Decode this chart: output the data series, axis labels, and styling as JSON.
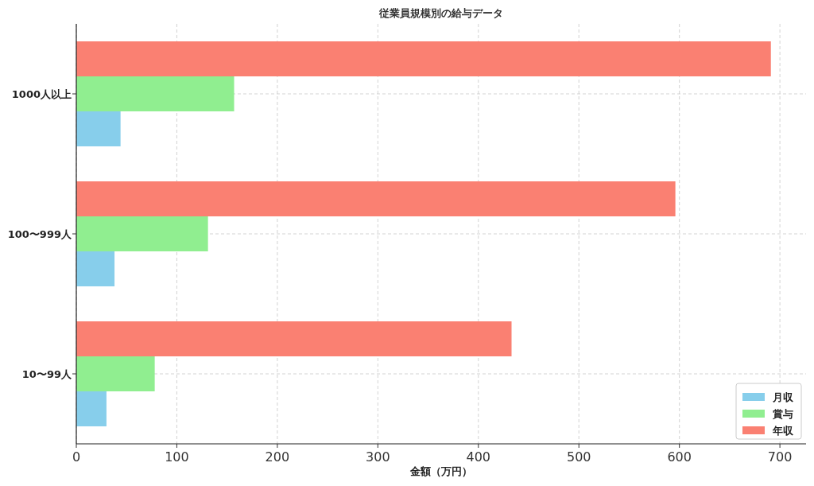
{
  "chart_data": {
    "type": "bar",
    "orientation": "horizontal",
    "title": "従業員規模別の給与データ",
    "xlabel": "金額（万円）",
    "categories": [
      "1000人以上",
      "100〜999人",
      "10〜99人"
    ],
    "series": [
      {
        "name": "月収",
        "color": "#87ceeb",
        "values": [
          44,
          38,
          30
        ]
      },
      {
        "name": "賞与",
        "color": "#90ee90",
        "values": [
          157,
          131,
          78
        ]
      },
      {
        "name": "年収",
        "color": "#fa8072",
        "values": [
          691,
          596,
          433
        ]
      }
    ],
    "xlim": [
      0,
      726
    ],
    "xticks": [
      0,
      100,
      200,
      300,
      400,
      500,
      600,
      700
    ],
    "grid": true,
    "legend": "bottom right"
  }
}
